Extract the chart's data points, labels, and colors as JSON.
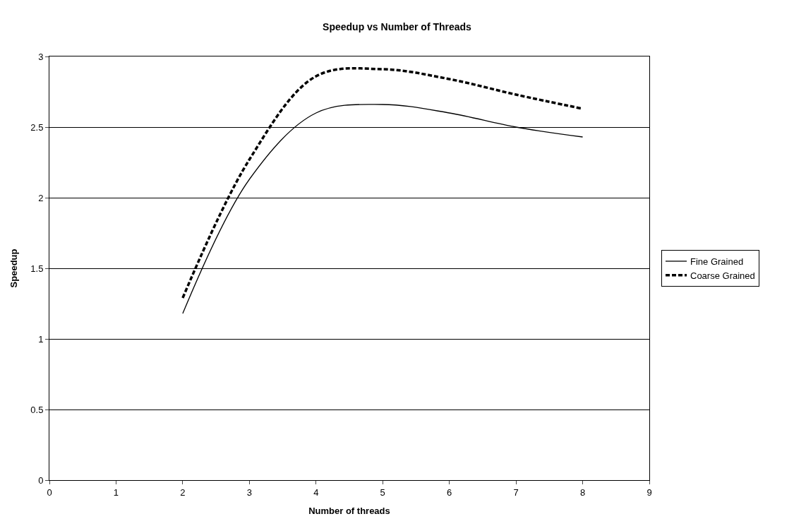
{
  "chart_data": {
    "type": "line",
    "title": "Speedup vs Number of Threads",
    "xlabel": "Number of threads",
    "ylabel": "Speedup",
    "x": [
      2,
      3,
      4,
      5,
      6,
      7,
      8
    ],
    "series": [
      {
        "name": "Fine Grained",
        "color": "#000000",
        "line_style": "solid",
        "values": [
          1.18,
          2.13,
          2.6,
          2.66,
          2.6,
          2.5,
          2.43
        ]
      },
      {
        "name": "Coarse Grained",
        "color": "#000000",
        "line_style": "dashed",
        "values": [
          1.29,
          2.27,
          2.86,
          2.91,
          2.84,
          2.73,
          2.63
        ]
      }
    ],
    "xlim": [
      0,
      9
    ],
    "xticks": [
      0,
      1,
      2,
      3,
      4,
      5,
      6,
      7,
      8,
      9
    ],
    "ylim": [
      0,
      3
    ],
    "yticks": [
      0,
      0.5,
      1,
      1.5,
      2,
      2.5,
      3
    ],
    "grid": "y",
    "legend": "right",
    "marker": "none"
  }
}
